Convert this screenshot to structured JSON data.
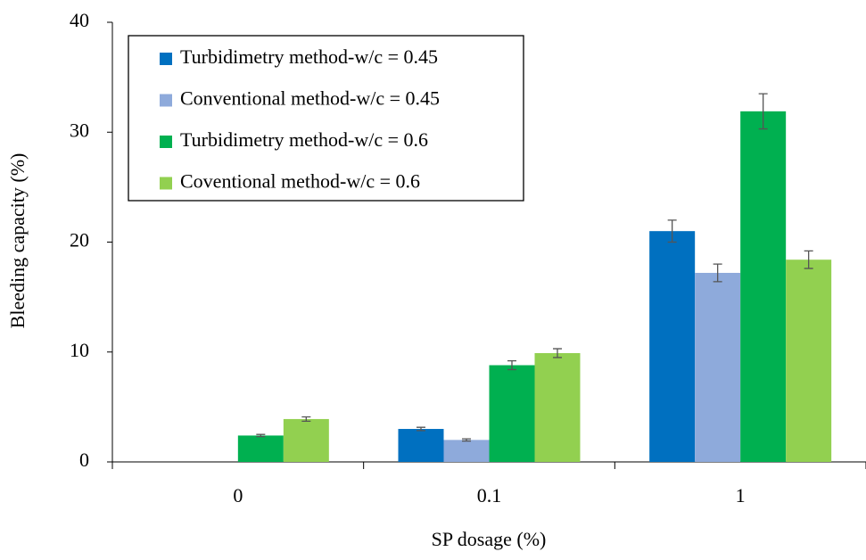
{
  "chart_data": {
    "type": "bar",
    "x_label": "SP dosage (%)",
    "y_label": "Bleeding capacity (%)",
    "categories": [
      "0",
      "0.1",
      "1"
    ],
    "series": [
      {
        "name": "Turbidimetry method-w/c = 0.45",
        "color": "#0070c0",
        "values": [
          0,
          3.0,
          21.0
        ],
        "errors": [
          null,
          0.15,
          1.0
        ]
      },
      {
        "name": "Conventional method-w/c = 0.45",
        "color": "#8eaadb",
        "values": [
          0,
          2.0,
          17.2
        ],
        "errors": [
          null,
          0.1,
          0.8
        ]
      },
      {
        "name": "Turbidimetry method-w/c = 0.6",
        "color": "#00b050",
        "values": [
          2.4,
          8.8,
          31.9
        ],
        "errors": [
          0.1,
          0.4,
          1.6
        ]
      },
      {
        "name": "Coventional method-w/c = 0.6",
        "color": "#92d050",
        "values": [
          3.9,
          9.9,
          18.4
        ],
        "errors": [
          0.2,
          0.4,
          0.8
        ]
      }
    ],
    "ylim": [
      0,
      40
    ],
    "yticks": [
      0,
      10,
      20,
      30,
      40
    ],
    "grid": false,
    "legend": "top-left"
  }
}
